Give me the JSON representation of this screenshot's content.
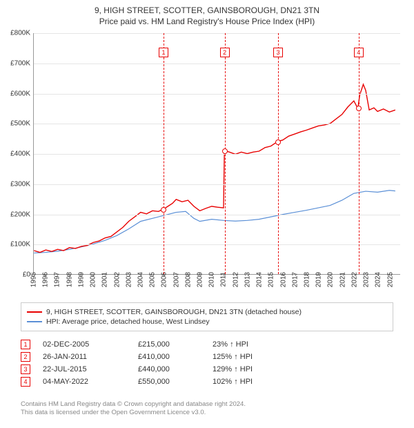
{
  "title": "9, HIGH STREET, SCOTTER, GAINSBOROUGH, DN21 3TN",
  "subtitle": "Price paid vs. HM Land Registry's House Price Index (HPI)",
  "chart": {
    "type": "line",
    "x_min_year": 1995,
    "x_max_year": 2025.9,
    "x_ticks": [
      1995,
      1996,
      1997,
      1998,
      1999,
      2000,
      2001,
      2002,
      2003,
      2004,
      2005,
      2006,
      2007,
      2008,
      2009,
      2010,
      2011,
      2012,
      2013,
      2014,
      2015,
      2016,
      2017,
      2018,
      2019,
      2020,
      2021,
      2022,
      2023,
      2024,
      2025
    ],
    "y_min": 0,
    "y_max": 800000,
    "y_ticks": [
      0,
      100000,
      200000,
      300000,
      400000,
      500000,
      600000,
      700000,
      800000
    ],
    "y_tick_labels": [
      "£0",
      "£100K",
      "£200K",
      "£300K",
      "£400K",
      "£500K",
      "£600K",
      "£700K",
      "£800K"
    ],
    "grid_color": "#e5e5e5",
    "background_color": "#ffffff",
    "red_color": "#e80000",
    "blue_color": "#5a8fd6",
    "red_line_width": 1.4,
    "blue_line_width": 1.2,
    "series_red": [
      [
        1995.0,
        78
      ],
      [
        1995.5,
        72
      ],
      [
        1996.0,
        80
      ],
      [
        1996.5,
        75
      ],
      [
        1997.0,
        82
      ],
      [
        1997.5,
        78
      ],
      [
        1998.0,
        88
      ],
      [
        1998.5,
        85
      ],
      [
        1999.0,
        92
      ],
      [
        1999.5,
        95
      ],
      [
        2000.0,
        105
      ],
      [
        2000.5,
        110
      ],
      [
        2001.0,
        120
      ],
      [
        2001.5,
        125
      ],
      [
        2002.0,
        140
      ],
      [
        2002.5,
        155
      ],
      [
        2003.0,
        175
      ],
      [
        2003.5,
        190
      ],
      [
        2004.0,
        205
      ],
      [
        2004.5,
        200
      ],
      [
        2005.0,
        210
      ],
      [
        2005.5,
        208
      ],
      [
        2005.92,
        215
      ],
      [
        2006.3,
        225
      ],
      [
        2006.7,
        235
      ],
      [
        2007.0,
        248
      ],
      [
        2007.5,
        240
      ],
      [
        2008.0,
        245
      ],
      [
        2008.5,
        225
      ],
      [
        2009.0,
        210
      ],
      [
        2009.5,
        218
      ],
      [
        2010.0,
        225
      ],
      [
        2010.5,
        222
      ],
      [
        2011.0,
        220
      ],
      [
        2011.07,
        410
      ],
      [
        2011.5,
        405
      ],
      [
        2012.0,
        398
      ],
      [
        2012.5,
        405
      ],
      [
        2013.0,
        400
      ],
      [
        2013.5,
        405
      ],
      [
        2014.0,
        408
      ],
      [
        2014.5,
        420
      ],
      [
        2015.0,
        425
      ],
      [
        2015.56,
        440
      ],
      [
        2016.0,
        445
      ],
      [
        2016.5,
        458
      ],
      [
        2017.0,
        465
      ],
      [
        2017.5,
        472
      ],
      [
        2018.0,
        478
      ],
      [
        2018.5,
        485
      ],
      [
        2019.0,
        492
      ],
      [
        2019.5,
        495
      ],
      [
        2020.0,
        500
      ],
      [
        2020.5,
        515
      ],
      [
        2021.0,
        530
      ],
      [
        2021.5,
        555
      ],
      [
        2022.0,
        575
      ],
      [
        2022.34,
        550
      ],
      [
        2022.5,
        595
      ],
      [
        2022.8,
        630
      ],
      [
        2023.0,
        610
      ],
      [
        2023.3,
        545
      ],
      [
        2023.7,
        552
      ],
      [
        2024.0,
        540
      ],
      [
        2024.5,
        548
      ],
      [
        2025.0,
        538
      ],
      [
        2025.5,
        545
      ]
    ],
    "series_blue": [
      [
        1995.0,
        70
      ],
      [
        1996.0,
        72
      ],
      [
        1997.0,
        76
      ],
      [
        1998.0,
        82
      ],
      [
        1999.0,
        90
      ],
      [
        2000.0,
        100
      ],
      [
        2001.0,
        112
      ],
      [
        2002.0,
        128
      ],
      [
        2003.0,
        150
      ],
      [
        2004.0,
        175
      ],
      [
        2005.0,
        185
      ],
      [
        2006.0,
        195
      ],
      [
        2007.0,
        205
      ],
      [
        2007.8,
        208
      ],
      [
        2008.5,
        185
      ],
      [
        2009.0,
        175
      ],
      [
        2010.0,
        182
      ],
      [
        2011.0,
        178
      ],
      [
        2012.0,
        176
      ],
      [
        2013.0,
        178
      ],
      [
        2014.0,
        182
      ],
      [
        2015.0,
        190
      ],
      [
        2016.0,
        198
      ],
      [
        2017.0,
        205
      ],
      [
        2018.0,
        212
      ],
      [
        2019.0,
        220
      ],
      [
        2020.0,
        228
      ],
      [
        2021.0,
        245
      ],
      [
        2022.0,
        268
      ],
      [
        2023.0,
        275
      ],
      [
        2024.0,
        272
      ],
      [
        2025.0,
        278
      ],
      [
        2025.5,
        276
      ]
    ],
    "sale_events": [
      {
        "n": 1,
        "year": 2005.92,
        "price": 215000
      },
      {
        "n": 2,
        "year": 2011.07,
        "price": 410000
      },
      {
        "n": 3,
        "year": 2015.56,
        "price": 440000
      },
      {
        "n": 4,
        "year": 2022.34,
        "price": 550000
      }
    ],
    "marker_y": 735000
  },
  "legend": {
    "red_label": "9, HIGH STREET, SCOTTER, GAINSBOROUGH, DN21 3TN (detached house)",
    "blue_label": "HPI: Average price, detached house, West Lindsey"
  },
  "sales": [
    {
      "n": "1",
      "date": "02-DEC-2005",
      "price": "£215,000",
      "delta": "23% ↑ HPI"
    },
    {
      "n": "2",
      "date": "26-JAN-2011",
      "price": "£410,000",
      "delta": "125% ↑ HPI"
    },
    {
      "n": "3",
      "date": "22-JUL-2015",
      "price": "£440,000",
      "delta": "129% ↑ HPI"
    },
    {
      "n": "4",
      "date": "04-MAY-2022",
      "price": "£550,000",
      "delta": "102% ↑ HPI"
    }
  ],
  "footer_line1": "Contains HM Land Registry data © Crown copyright and database right 2024.",
  "footer_line2": "This data is licensed under the Open Government Licence v3.0."
}
